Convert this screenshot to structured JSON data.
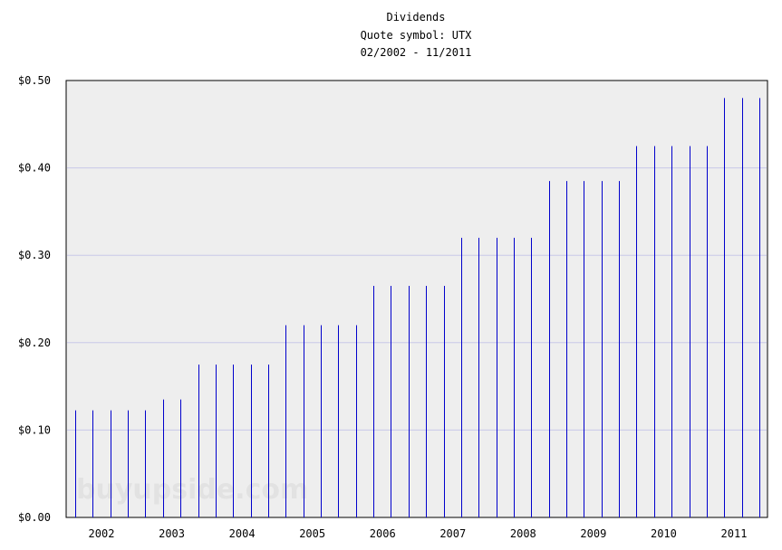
{
  "chart_data": {
    "type": "bar",
    "title": "Dividends",
    "subtitle": "Quote symbol: UTX",
    "date_range": "02/2002 - 11/2011",
    "watermark": "buyupside.com",
    "ylim": [
      0,
      0.5
    ],
    "y_ticks": [
      {
        "value": 0.0,
        "label": "$0.00"
      },
      {
        "value": 0.1,
        "label": "$0.10"
      },
      {
        "value": 0.2,
        "label": "$0.20"
      },
      {
        "value": 0.3,
        "label": "$0.30"
      },
      {
        "value": 0.4,
        "label": "$0.40"
      },
      {
        "value": 0.5,
        "label": "$0.50"
      }
    ],
    "x_tick_labels": [
      "2002",
      "2003",
      "2004",
      "2005",
      "2006",
      "2007",
      "2008",
      "2009",
      "2010",
      "2011"
    ],
    "grid": true,
    "colors": {
      "bar": "#0000cc",
      "plot_background": "#eeeeee",
      "grid": "#c8c8e8"
    },
    "series": [
      {
        "values": [
          0.1225,
          0.1225,
          0.1225,
          0.1225,
          0.1225,
          0.135,
          0.135,
          0.175,
          0.175,
          0.175,
          0.175,
          0.175,
          0.22,
          0.22,
          0.22,
          0.22,
          0.22,
          0.265,
          0.265,
          0.265,
          0.265,
          0.265,
          0.32,
          0.32,
          0.32,
          0.32,
          0.32,
          0.385,
          0.385,
          0.385,
          0.385,
          0.385,
          0.425,
          0.425,
          0.425,
          0.425,
          0.425,
          0.48,
          0.48,
          0.48
        ]
      }
    ]
  }
}
